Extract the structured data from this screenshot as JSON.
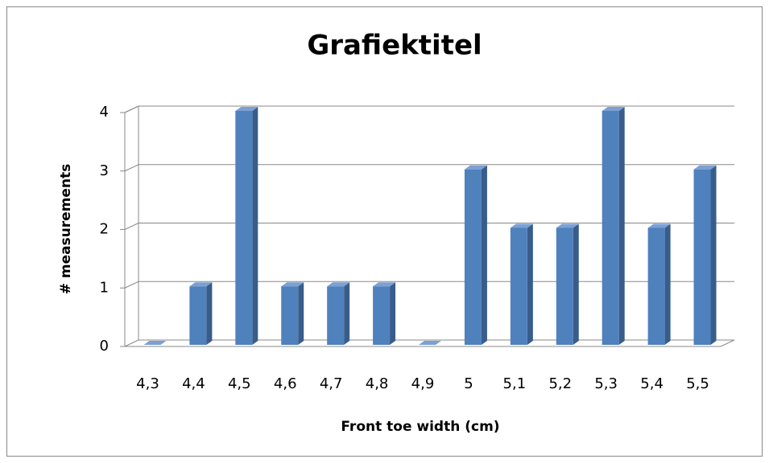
{
  "chart_data": {
    "type": "bar",
    "title": "Grafiektitel",
    "x_label": "Front toe width (cm)",
    "y_label": "# measurements",
    "categories": [
      "4,3",
      "4,4",
      "4,5",
      "4,6",
      "4,7",
      "4,8",
      "4,9",
      "5",
      "5,1",
      "5,2",
      "5,3",
      "5,4",
      "5,5"
    ],
    "values": [
      0,
      1,
      4,
      1,
      1,
      1,
      0,
      3,
      2,
      2,
      4,
      2,
      3
    ],
    "color": "#4f81bd",
    "ylim": [
      0,
      4
    ],
    "yticks": [
      0,
      1,
      2,
      3,
      4
    ],
    "grid": true
  }
}
